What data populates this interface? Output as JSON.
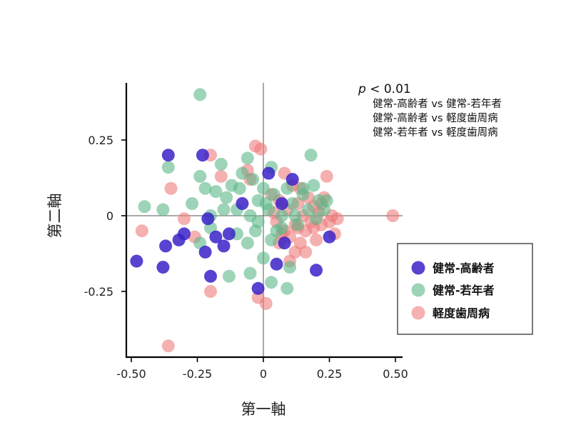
{
  "chart_data": {
    "type": "scatter",
    "xlabel": "第一軸",
    "ylabel": "第二軸",
    "xlim": [
      -0.55,
      0.53
    ],
    "ylim": [
      -0.47,
      0.44
    ],
    "x_ticks": [
      {
        "value": -0.5,
        "label": "-0.50"
      },
      {
        "value": -0.25,
        "label": "-0.25"
      },
      {
        "value": 0,
        "label": "0"
      },
      {
        "value": 0.25,
        "label": "0.25"
      },
      {
        "value": 0.5,
        "label": "0.50"
      }
    ],
    "y_ticks": [
      {
        "value": 0.25,
        "label": "0.25"
      },
      {
        "value": 0,
        "label": "0"
      },
      {
        "value": -0.25,
        "label": "-0.25"
      }
    ],
    "annotation": {
      "p_symbol": "p",
      "p_text": " < 0.01",
      "lines": [
        "健常-高齢者 vs 健常-若年者",
        "健常-高齢者 vs 軽度歯周病",
        "健常-若年者 vs 軽度歯周病"
      ]
    },
    "legend_position": "right",
    "series": [
      {
        "name": "健常-高齢者",
        "color": "#3a22c8",
        "points": [
          [
            -0.48,
            -0.15
          ],
          [
            -0.36,
            0.2
          ],
          [
            -0.23,
            0.2
          ],
          [
            -0.38,
            -0.17
          ],
          [
            -0.37,
            -0.1
          ],
          [
            -0.32,
            -0.08
          ],
          [
            -0.3,
            -0.06
          ],
          [
            -0.22,
            -0.12
          ],
          [
            -0.21,
            -0.01
          ],
          [
            -0.2,
            -0.2
          ],
          [
            -0.18,
            -0.07
          ],
          [
            -0.15,
            -0.1
          ],
          [
            -0.13,
            -0.06
          ],
          [
            -0.08,
            0.04
          ],
          [
            -0.02,
            -0.24
          ],
          [
            0.02,
            0.14
          ],
          [
            0.07,
            0.04
          ],
          [
            0.05,
            -0.16
          ],
          [
            0.08,
            -0.09
          ],
          [
            0.11,
            0.12
          ],
          [
            0.2,
            -0.18
          ],
          [
            0.25,
            -0.07
          ]
        ]
      },
      {
        "name": "健常-若年者",
        "color": "#5cb888",
        "points": [
          [
            -0.24,
            0.4
          ],
          [
            -0.45,
            0.03
          ],
          [
            -0.38,
            0.02
          ],
          [
            -0.36,
            0.16
          ],
          [
            -0.27,
            0.04
          ],
          [
            -0.24,
            0.13
          ],
          [
            -0.22,
            0.09
          ],
          [
            -0.2,
            0.0
          ],
          [
            -0.18,
            0.08
          ],
          [
            -0.16,
            0.17
          ],
          [
            -0.14,
            0.06
          ],
          [
            -0.12,
            0.1
          ],
          [
            -0.1,
            0.02
          ],
          [
            -0.08,
            0.14
          ],
          [
            -0.06,
            0.19
          ],
          [
            -0.05,
            0.0
          ],
          [
            -0.04,
            0.12
          ],
          [
            -0.02,
            0.05
          ],
          [
            0.0,
            0.09
          ],
          [
            0.02,
            0.02
          ],
          [
            0.03,
            0.16
          ],
          [
            0.05,
            -0.05
          ],
          [
            0.07,
            0.0
          ],
          [
            0.09,
            0.09
          ],
          [
            0.11,
            0.04
          ],
          [
            0.13,
            -0.03
          ],
          [
            0.15,
            0.07
          ],
          [
            0.17,
            0.02
          ],
          [
            0.18,
            0.2
          ],
          [
            0.19,
            0.1
          ],
          [
            0.21,
            0.05
          ],
          [
            0.23,
            0.02
          ],
          [
            0.1,
            -0.17
          ],
          [
            0.09,
            -0.24
          ],
          [
            0.03,
            -0.22
          ],
          [
            -0.05,
            -0.19
          ],
          [
            -0.13,
            -0.2
          ],
          [
            -0.24,
            -0.09
          ],
          [
            -0.2,
            -0.04
          ],
          [
            -0.1,
            -0.06
          ],
          [
            -0.06,
            -0.09
          ],
          [
            0.0,
            -0.14
          ],
          [
            0.03,
            -0.08
          ],
          [
            0.07,
            -0.04
          ],
          [
            0.12,
            0.0
          ],
          [
            -0.02,
            -0.02
          ],
          [
            0.01,
            0.04
          ],
          [
            0.04,
            0.07
          ],
          [
            -0.09,
            0.09
          ],
          [
            -0.15,
            0.02
          ],
          [
            0.15,
            0.09
          ],
          [
            0.2,
            -0.01
          ],
          [
            0.24,
            0.05
          ],
          [
            -0.03,
            -0.05
          ]
        ]
      },
      {
        "name": "軽度歯周病",
        "color": "#ee7c7c",
        "points": [
          [
            0.49,
            0.0
          ],
          [
            -0.46,
            -0.05
          ],
          [
            -0.35,
            0.09
          ],
          [
            -0.36,
            -0.43
          ],
          [
            -0.3,
            -0.01
          ],
          [
            -0.2,
            0.2
          ],
          [
            -0.2,
            -0.25
          ],
          [
            -0.16,
            0.13
          ],
          [
            -0.06,
            0.15
          ],
          [
            -0.03,
            0.23
          ],
          [
            -0.01,
            0.22
          ],
          [
            -0.02,
            -0.27
          ],
          [
            0.01,
            -0.29
          ],
          [
            -0.05,
            0.12
          ],
          [
            0.03,
            0.07
          ],
          [
            0.05,
            -0.02
          ],
          [
            0.06,
            0.05
          ],
          [
            0.08,
            -0.05
          ],
          [
            0.09,
            0.02
          ],
          [
            0.1,
            -0.07
          ],
          [
            0.11,
            0.1
          ],
          [
            0.12,
            -0.03
          ],
          [
            0.13,
            0.04
          ],
          [
            0.14,
            -0.09
          ],
          [
            0.15,
            0.0
          ],
          [
            0.16,
            -0.05
          ],
          [
            0.17,
            0.06
          ],
          [
            0.18,
            -0.02
          ],
          [
            0.19,
            0.03
          ],
          [
            0.2,
            -0.08
          ],
          [
            0.21,
            0.01
          ],
          [
            0.22,
            -0.03
          ],
          [
            0.23,
            0.06
          ],
          [
            0.24,
            0.13
          ],
          [
            0.25,
            -0.02
          ],
          [
            0.26,
            0.0
          ],
          [
            0.27,
            -0.06
          ],
          [
            0.28,
            -0.01
          ],
          [
            0.12,
            -0.12
          ],
          [
            0.16,
            -0.12
          ],
          [
            0.1,
            -0.15
          ],
          [
            0.06,
            -0.09
          ],
          [
            0.04,
            0.01
          ],
          [
            0.08,
            0.14
          ],
          [
            0.14,
            0.09
          ],
          [
            0.19,
            -0.04
          ],
          [
            0.22,
            0.04
          ],
          [
            -0.26,
            -0.07
          ],
          [
            0.07,
            -0.06
          ],
          [
            0.13,
            -0.04
          ]
        ]
      }
    ]
  }
}
